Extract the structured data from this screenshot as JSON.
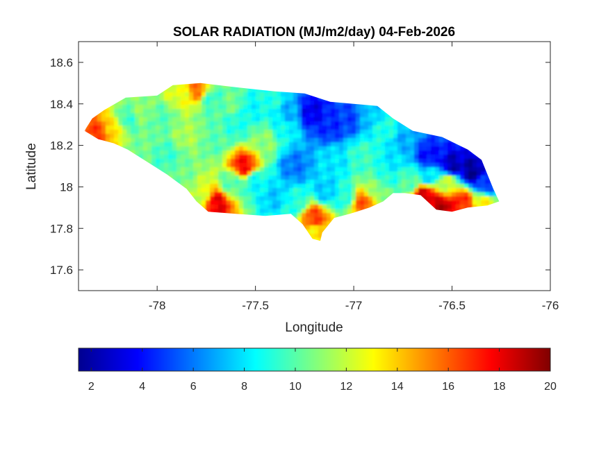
{
  "chart_data": {
    "type": "heatmap",
    "title": "SOLAR RADIATION (MJ/m2/day) 04-Feb-2026",
    "xlabel": "Longitude",
    "ylabel": "Latitude",
    "xlim": [
      -78.4,
      -76
    ],
    "ylim": [
      17.5,
      18.7
    ],
    "x_ticks": [
      -78,
      -77.5,
      -77,
      -76.5,
      -76
    ],
    "x_tick_labels": [
      "-78",
      "-77.5",
      "-77",
      "-76.5",
      "-76"
    ],
    "y_ticks": [
      17.6,
      17.8,
      18,
      18.2,
      18.4,
      18.6
    ],
    "y_tick_labels": [
      "17.6",
      "17.8",
      "18",
      "18.2",
      "18.4",
      "18.6"
    ],
    "colorbar": {
      "colormap": "jet",
      "range": [
        1.5,
        20
      ],
      "ticks": [
        2,
        4,
        6,
        8,
        10,
        12,
        14,
        16,
        18,
        20
      ],
      "tick_labels": [
        "2",
        "4",
        "6",
        "8",
        "10",
        "12",
        "14",
        "16",
        "18",
        "20"
      ],
      "location": "southoutside"
    },
    "region": "Jamaica",
    "outline": [
      [
        -78.37,
        18.27
      ],
      [
        -78.33,
        18.33
      ],
      [
        -78.27,
        18.37
      ],
      [
        -78.16,
        18.43
      ],
      [
        -78.0,
        18.44
      ],
      [
        -77.92,
        18.49
      ],
      [
        -77.78,
        18.5
      ],
      [
        -77.6,
        18.48
      ],
      [
        -77.4,
        18.46
      ],
      [
        -77.25,
        18.45
      ],
      [
        -77.12,
        18.41
      ],
      [
        -77.0,
        18.4
      ],
      [
        -76.88,
        18.39
      ],
      [
        -76.8,
        18.33
      ],
      [
        -76.7,
        18.27
      ],
      [
        -76.55,
        18.24
      ],
      [
        -76.42,
        18.18
      ],
      [
        -76.35,
        18.13
      ],
      [
        -76.32,
        18.06
      ],
      [
        -76.29,
        17.99
      ],
      [
        -76.26,
        17.93
      ],
      [
        -76.32,
        17.91
      ],
      [
        -76.42,
        17.9
      ],
      [
        -76.5,
        17.88
      ],
      [
        -76.58,
        17.89
      ],
      [
        -76.66,
        17.96
      ],
      [
        -76.74,
        17.97
      ],
      [
        -76.8,
        17.97
      ],
      [
        -76.85,
        17.93
      ],
      [
        -76.92,
        17.9
      ],
      [
        -77.02,
        17.87
      ],
      [
        -77.1,
        17.85
      ],
      [
        -77.16,
        17.78
      ],
      [
        -77.17,
        17.74
      ],
      [
        -77.21,
        17.75
      ],
      [
        -77.26,
        17.82
      ],
      [
        -77.32,
        17.87
      ],
      [
        -77.45,
        17.86
      ],
      [
        -77.6,
        17.87
      ],
      [
        -77.74,
        17.88
      ],
      [
        -77.8,
        17.93
      ],
      [
        -77.85,
        17.99
      ],
      [
        -77.95,
        18.06
      ],
      [
        -78.05,
        18.12
      ],
      [
        -78.15,
        18.18
      ],
      [
        -78.22,
        18.21
      ],
      [
        -78.3,
        18.23
      ],
      [
        -78.37,
        18.27
      ]
    ],
    "field_points": [
      [
        -78.3,
        18.26,
        16.5
      ],
      [
        -78.22,
        18.28,
        13.5
      ],
      [
        -78.15,
        18.32,
        9.5
      ],
      [
        -78.08,
        18.36,
        11
      ],
      [
        -77.98,
        18.33,
        10
      ],
      [
        -77.88,
        18.45,
        12.5
      ],
      [
        -77.8,
        18.47,
        15.5
      ],
      [
        -77.72,
        18.42,
        9.5
      ],
      [
        -77.62,
        18.4,
        10.5
      ],
      [
        -77.52,
        18.38,
        8.5
      ],
      [
        -77.42,
        18.42,
        9
      ],
      [
        -77.32,
        18.36,
        7
      ],
      [
        -77.22,
        18.36,
        3.5
      ],
      [
        -77.12,
        18.3,
        4.5
      ],
      [
        -77.02,
        18.33,
        5
      ],
      [
        -76.92,
        18.34,
        7.5
      ],
      [
        -76.84,
        18.28,
        9
      ],
      [
        -76.74,
        18.22,
        7
      ],
      [
        -76.62,
        18.15,
        4
      ],
      [
        -76.5,
        18.1,
        2.5
      ],
      [
        -76.4,
        18.07,
        2
      ],
      [
        -76.33,
        18.0,
        5
      ],
      [
        -76.34,
        17.93,
        13
      ],
      [
        -76.45,
        17.93,
        17
      ],
      [
        -76.55,
        17.9,
        19
      ],
      [
        -76.64,
        17.96,
        18.5
      ],
      [
        -76.72,
        18.02,
        10
      ],
      [
        -76.82,
        18.05,
        9
      ],
      [
        -76.88,
        17.98,
        11
      ],
      [
        -76.95,
        17.92,
        16
      ],
      [
        -77.05,
        17.95,
        9
      ],
      [
        -77.14,
        17.98,
        7.5
      ],
      [
        -77.2,
        17.85,
        16.5
      ],
      [
        -77.2,
        17.78,
        13.5
      ],
      [
        -77.3,
        17.92,
        9
      ],
      [
        -77.4,
        17.95,
        7.5
      ],
      [
        -77.5,
        18.02,
        8.5
      ],
      [
        -77.56,
        18.1,
        17.5
      ],
      [
        -77.62,
        18.02,
        10
      ],
      [
        -77.7,
        17.92,
        18
      ],
      [
        -77.78,
        17.95,
        12
      ],
      [
        -77.88,
        18.05,
        10.5
      ],
      [
        -77.95,
        18.15,
        9.5
      ],
      [
        -77.85,
        18.25,
        11.5
      ],
      [
        -77.7,
        18.22,
        10
      ],
      [
        -77.45,
        18.22,
        11
      ],
      [
        -77.3,
        18.1,
        6
      ],
      [
        -77.1,
        18.12,
        8
      ],
      [
        -76.95,
        18.15,
        9.5
      ],
      [
        -76.8,
        18.12,
        8
      ],
      [
        -77.6,
        18.3,
        9
      ],
      [
        -77.35,
        18.28,
        8.5
      ],
      [
        -76.62,
        18.05,
        8
      ],
      [
        -76.52,
        18.02,
        12
      ],
      [
        -78.08,
        18.2,
        10.5
      ],
      [
        -77.7,
        18.35,
        10
      ]
    ]
  }
}
